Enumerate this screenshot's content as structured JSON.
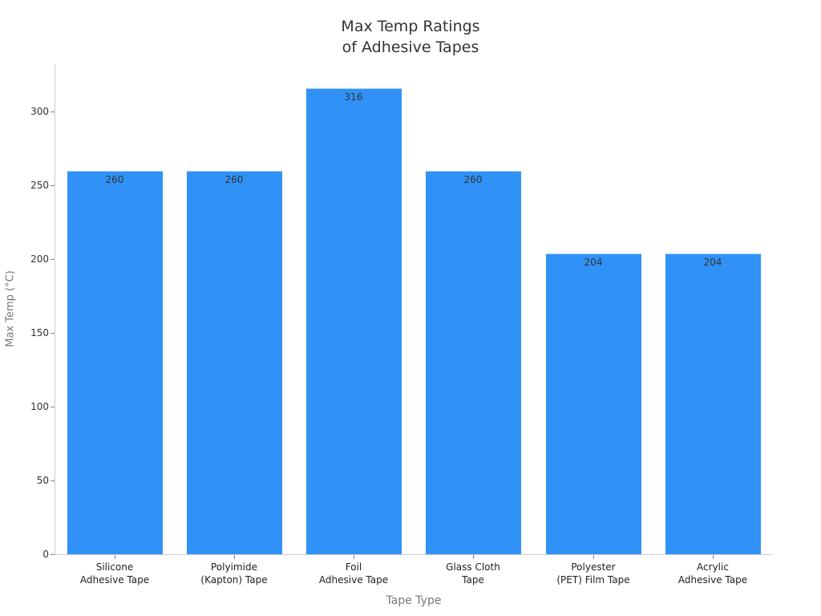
{
  "chart": {
    "title_line1": "Max Temp Ratings",
    "title_line2": "of Adhesive Tapes",
    "xlabel": "Tape Type",
    "ylabel": "Max Temp (°C)",
    "bar_color": "#3092f7",
    "yticks": [
      "0",
      "50",
      "100",
      "150",
      "200",
      "250",
      "300"
    ],
    "bars": [
      {
        "label": "Silicone\nAdhesive Tape",
        "value": 260,
        "value_label": "260"
      },
      {
        "label": "Polyimide\n(Kapton) Tape",
        "value": 260,
        "value_label": "260"
      },
      {
        "label": "Foil\nAdhesive Tape",
        "value": 316,
        "value_label": "316"
      },
      {
        "label": "Glass Cloth\nTape",
        "value": 260,
        "value_label": "260"
      },
      {
        "label": "Polyester\n(PET) Film Tape",
        "value": 204,
        "value_label": "204"
      },
      {
        "label": "Acrylic\nAdhesive Tape",
        "value": 204,
        "value_label": "204"
      }
    ]
  },
  "chart_data": {
    "type": "bar",
    "title": "Max Temp Ratings of Adhesive Tapes",
    "categories": [
      "Silicone Adhesive Tape",
      "Polyimide (Kapton) Tape",
      "Foil Adhesive Tape",
      "Glass Cloth Tape",
      "Polyester (PET) Film Tape",
      "Acrylic Adhesive Tape"
    ],
    "values": [
      260,
      260,
      316,
      260,
      204,
      204
    ],
    "xlabel": "Tape Type",
    "ylabel": "Max Temp (°C)",
    "ylim": [
      0,
      332
    ],
    "yticks": [
      0,
      50,
      100,
      150,
      200,
      250,
      300
    ],
    "grid": false,
    "legend": null,
    "data_labels": true,
    "color": "#3092f7"
  }
}
